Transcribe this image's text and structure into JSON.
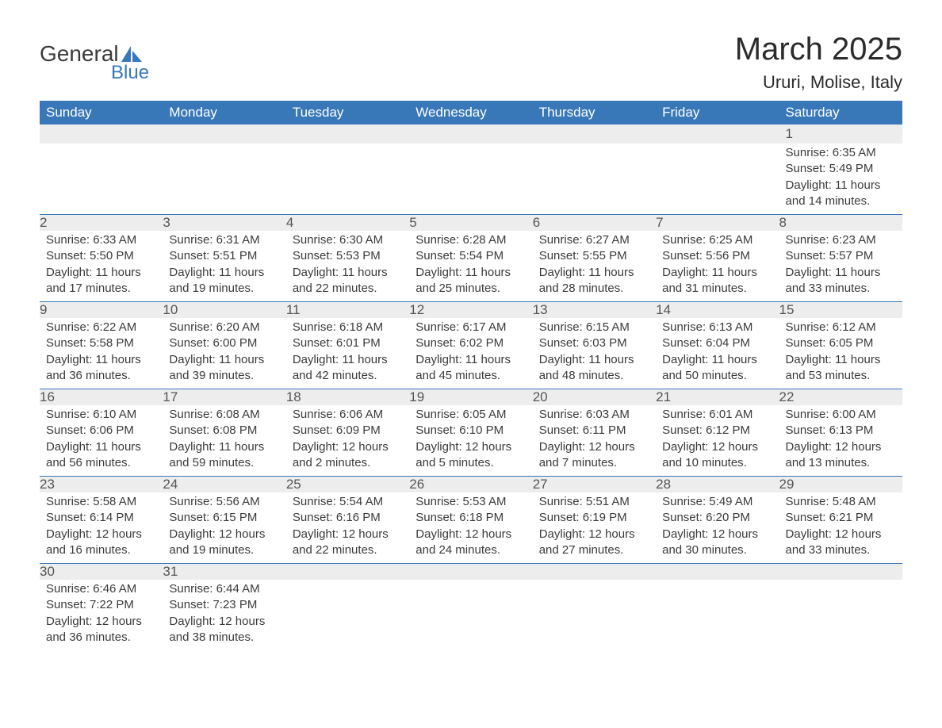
{
  "logo": {
    "general": "General",
    "blue": "Blue"
  },
  "title": "March 2025",
  "location": "Ururi, Molise, Italy",
  "colors": {
    "header_bg": "#3878b8",
    "header_text": "#ffffff",
    "daynum_bg": "#ededed",
    "text": "#3b3b3b",
    "rule": "#3878b8"
  },
  "day_headers": [
    "Sunday",
    "Monday",
    "Tuesday",
    "Wednesday",
    "Thursday",
    "Friday",
    "Saturday"
  ],
  "weeks": [
    [
      null,
      null,
      null,
      null,
      null,
      null,
      {
        "n": "1",
        "sunrise": "6:35 AM",
        "sunset": "5:49 PM",
        "daylight": "11 hours and 14 minutes."
      }
    ],
    [
      {
        "n": "2",
        "sunrise": "6:33 AM",
        "sunset": "5:50 PM",
        "daylight": "11 hours and 17 minutes."
      },
      {
        "n": "3",
        "sunrise": "6:31 AM",
        "sunset": "5:51 PM",
        "daylight": "11 hours and 19 minutes."
      },
      {
        "n": "4",
        "sunrise": "6:30 AM",
        "sunset": "5:53 PM",
        "daylight": "11 hours and 22 minutes."
      },
      {
        "n": "5",
        "sunrise": "6:28 AM",
        "sunset": "5:54 PM",
        "daylight": "11 hours and 25 minutes."
      },
      {
        "n": "6",
        "sunrise": "6:27 AM",
        "sunset": "5:55 PM",
        "daylight": "11 hours and 28 minutes."
      },
      {
        "n": "7",
        "sunrise": "6:25 AM",
        "sunset": "5:56 PM",
        "daylight": "11 hours and 31 minutes."
      },
      {
        "n": "8",
        "sunrise": "6:23 AM",
        "sunset": "5:57 PM",
        "daylight": "11 hours and 33 minutes."
      }
    ],
    [
      {
        "n": "9",
        "sunrise": "6:22 AM",
        "sunset": "5:58 PM",
        "daylight": "11 hours and 36 minutes."
      },
      {
        "n": "10",
        "sunrise": "6:20 AM",
        "sunset": "6:00 PM",
        "daylight": "11 hours and 39 minutes."
      },
      {
        "n": "11",
        "sunrise": "6:18 AM",
        "sunset": "6:01 PM",
        "daylight": "11 hours and 42 minutes."
      },
      {
        "n": "12",
        "sunrise": "6:17 AM",
        "sunset": "6:02 PM",
        "daylight": "11 hours and 45 minutes."
      },
      {
        "n": "13",
        "sunrise": "6:15 AM",
        "sunset": "6:03 PM",
        "daylight": "11 hours and 48 minutes."
      },
      {
        "n": "14",
        "sunrise": "6:13 AM",
        "sunset": "6:04 PM",
        "daylight": "11 hours and 50 minutes."
      },
      {
        "n": "15",
        "sunrise": "6:12 AM",
        "sunset": "6:05 PM",
        "daylight": "11 hours and 53 minutes."
      }
    ],
    [
      {
        "n": "16",
        "sunrise": "6:10 AM",
        "sunset": "6:06 PM",
        "daylight": "11 hours and 56 minutes."
      },
      {
        "n": "17",
        "sunrise": "6:08 AM",
        "sunset": "6:08 PM",
        "daylight": "11 hours and 59 minutes."
      },
      {
        "n": "18",
        "sunrise": "6:06 AM",
        "sunset": "6:09 PM",
        "daylight": "12 hours and 2 minutes."
      },
      {
        "n": "19",
        "sunrise": "6:05 AM",
        "sunset": "6:10 PM",
        "daylight": "12 hours and 5 minutes."
      },
      {
        "n": "20",
        "sunrise": "6:03 AM",
        "sunset": "6:11 PM",
        "daylight": "12 hours and 7 minutes."
      },
      {
        "n": "21",
        "sunrise": "6:01 AM",
        "sunset": "6:12 PM",
        "daylight": "12 hours and 10 minutes."
      },
      {
        "n": "22",
        "sunrise": "6:00 AM",
        "sunset": "6:13 PM",
        "daylight": "12 hours and 13 minutes."
      }
    ],
    [
      {
        "n": "23",
        "sunrise": "5:58 AM",
        "sunset": "6:14 PM",
        "daylight": "12 hours and 16 minutes."
      },
      {
        "n": "24",
        "sunrise": "5:56 AM",
        "sunset": "6:15 PM",
        "daylight": "12 hours and 19 minutes."
      },
      {
        "n": "25",
        "sunrise": "5:54 AM",
        "sunset": "6:16 PM",
        "daylight": "12 hours and 22 minutes."
      },
      {
        "n": "26",
        "sunrise": "5:53 AM",
        "sunset": "6:18 PM",
        "daylight": "12 hours and 24 minutes."
      },
      {
        "n": "27",
        "sunrise": "5:51 AM",
        "sunset": "6:19 PM",
        "daylight": "12 hours and 27 minutes."
      },
      {
        "n": "28",
        "sunrise": "5:49 AM",
        "sunset": "6:20 PM",
        "daylight": "12 hours and 30 minutes."
      },
      {
        "n": "29",
        "sunrise": "5:48 AM",
        "sunset": "6:21 PM",
        "daylight": "12 hours and 33 minutes."
      }
    ],
    [
      {
        "n": "30",
        "sunrise": "6:46 AM",
        "sunset": "7:22 PM",
        "daylight": "12 hours and 36 minutes."
      },
      {
        "n": "31",
        "sunrise": "6:44 AM",
        "sunset": "7:23 PM",
        "daylight": "12 hours and 38 minutes."
      },
      null,
      null,
      null,
      null,
      null
    ]
  ],
  "labels": {
    "sunrise": "Sunrise: ",
    "sunset": "Sunset: ",
    "daylight": "Daylight: "
  }
}
